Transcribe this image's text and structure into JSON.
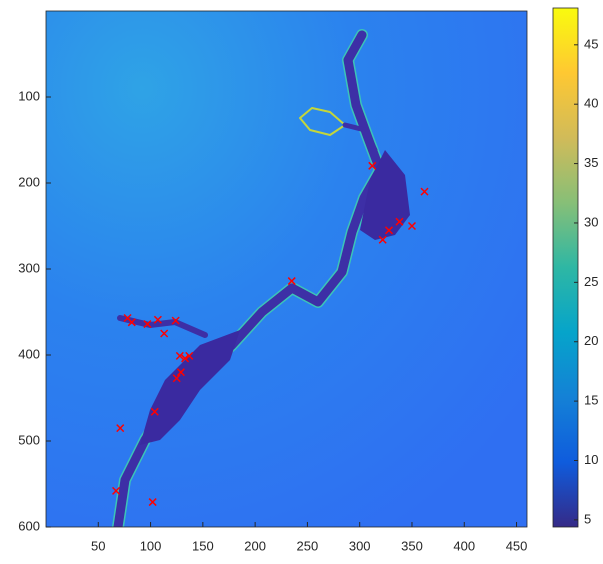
{
  "chart_data": {
    "type": "image",
    "xlim": [
      0,
      460
    ],
    "ylim": [
      0,
      600
    ],
    "y_reversed": true,
    "xticks": [
      50,
      100,
      150,
      200,
      250,
      300,
      350,
      400,
      450
    ],
    "yticks": [
      100,
      200,
      300,
      400,
      500,
      600
    ],
    "colorbar": {
      "colormap": "parula",
      "clim": [
        4.4,
        48.1
      ],
      "ticks": [
        5,
        10,
        15,
        20,
        25,
        30,
        35,
        40,
        45
      ]
    },
    "markers": {
      "color": "#ff0000",
      "x": [
        312,
        362,
        338,
        350,
        328,
        322,
        235,
        78,
        82,
        97,
        107,
        124,
        113,
        128,
        133,
        137,
        129,
        125,
        104,
        71,
        67,
        102
      ],
      "y": [
        180,
        210,
        245,
        250,
        255,
        266,
        314,
        357,
        362,
        364,
        359,
        360,
        375,
        401,
        404,
        401,
        420,
        427,
        466,
        485,
        558,
        571
      ]
    }
  }
}
